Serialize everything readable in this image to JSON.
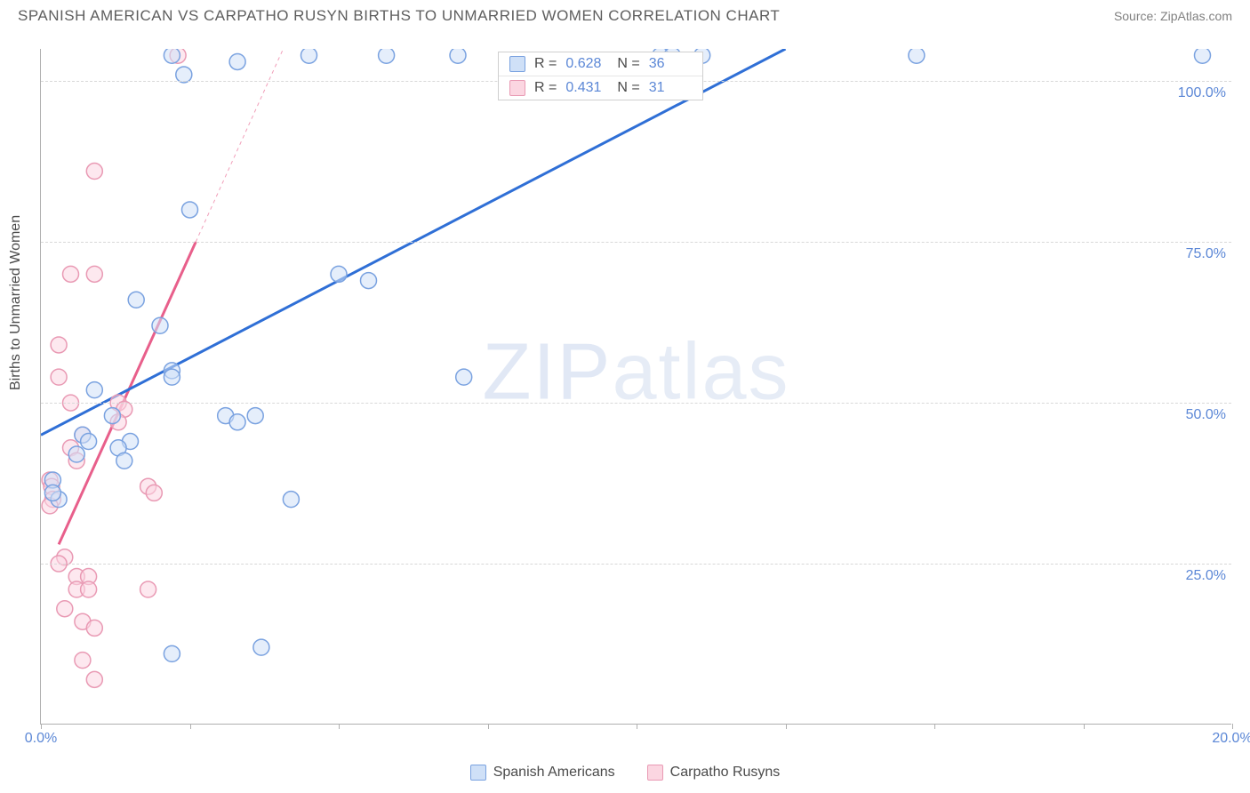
{
  "header": {
    "title": "SPANISH AMERICAN VS CARPATHO RUSYN BIRTHS TO UNMARRIED WOMEN CORRELATION CHART",
    "source": "Source: ZipAtlas.com"
  },
  "ylabel": "Births to Unmarried Women",
  "watermark": {
    "bold": "ZIP",
    "thin": "atlas"
  },
  "axes": {
    "xlim": [
      0,
      20
    ],
    "ylim": [
      0,
      105
    ],
    "xticks": [
      0,
      2.5,
      5,
      7.5,
      10,
      12.5,
      15,
      17.5,
      20
    ],
    "xtick_labels": {
      "0": "0.0%",
      "8": "20.0%"
    },
    "yticks": [
      25,
      50,
      75,
      100
    ],
    "ytick_labels": [
      "25.0%",
      "50.0%",
      "75.0%",
      "100.0%"
    ],
    "grid_color": "#d8d8d8",
    "axis_color": "#b0b0b0",
    "tick_label_color": "#5b87d6",
    "tick_label_fontsize": 16,
    "background_color": "#ffffff"
  },
  "series": {
    "spanish": {
      "label": "Spanish Americans",
      "fill": "#cfe0f7",
      "stroke": "#7aa2e0",
      "line_color": "#2f6fd6",
      "line_width": 3,
      "marker_radius": 9,
      "fill_opacity": 0.55,
      "R": "0.628",
      "N": "36",
      "trend": {
        "x1": 0,
        "y1": 45,
        "x2": 12.5,
        "y2": 105,
        "extend_style": "solid"
      },
      "points": [
        [
          2.2,
          104
        ],
        [
          3.3,
          103
        ],
        [
          4.5,
          104
        ],
        [
          5.8,
          104
        ],
        [
          7.0,
          104
        ],
        [
          10.4,
          104
        ],
        [
          10.6,
          104
        ],
        [
          11.1,
          104
        ],
        [
          14.7,
          104
        ],
        [
          19.5,
          104
        ],
        [
          2.4,
          101
        ],
        [
          2.5,
          80
        ],
        [
          5.0,
          70
        ],
        [
          5.5,
          69
        ],
        [
          1.6,
          66
        ],
        [
          2.0,
          62
        ],
        [
          2.2,
          55
        ],
        [
          2.2,
          54
        ],
        [
          3.1,
          48
        ],
        [
          3.3,
          47
        ],
        [
          3.6,
          48
        ],
        [
          0.6,
          42
        ],
        [
          0.7,
          45
        ],
        [
          0.8,
          44
        ],
        [
          0.2,
          38
        ],
        [
          0.3,
          35
        ],
        [
          0.2,
          36
        ],
        [
          4.2,
          35
        ],
        [
          7.1,
          54
        ],
        [
          1.2,
          48
        ],
        [
          1.5,
          44
        ],
        [
          1.3,
          43
        ],
        [
          1.4,
          41
        ],
        [
          2.2,
          11
        ],
        [
          3.7,
          12
        ],
        [
          0.9,
          52
        ]
      ]
    },
    "rusyn": {
      "label": "Carpatho Rusyns",
      "fill": "#fbd6e1",
      "stroke": "#e99ab4",
      "line_color": "#e85f8b",
      "line_width": 3,
      "marker_radius": 9,
      "fill_opacity": 0.55,
      "R": "0.431",
      "N": "31",
      "trend": {
        "x1": 0.3,
        "y1": 28,
        "x2": 2.6,
        "y2": 75,
        "extend_to_y": 105,
        "extend_style": "dashed"
      },
      "points": [
        [
          2.3,
          104
        ],
        [
          0.9,
          86
        ],
        [
          0.5,
          70
        ],
        [
          0.9,
          70
        ],
        [
          0.3,
          59
        ],
        [
          0.3,
          54
        ],
        [
          0.5,
          50
        ],
        [
          1.3,
          50
        ],
        [
          1.4,
          49
        ],
        [
          1.3,
          47
        ],
        [
          0.7,
          45
        ],
        [
          0.5,
          43
        ],
        [
          0.6,
          41
        ],
        [
          0.15,
          38
        ],
        [
          0.18,
          37
        ],
        [
          0.2,
          35
        ],
        [
          0.15,
          34
        ],
        [
          1.8,
          37
        ],
        [
          1.9,
          36
        ],
        [
          0.4,
          26
        ],
        [
          0.3,
          25
        ],
        [
          0.6,
          23
        ],
        [
          0.8,
          23
        ],
        [
          0.6,
          21
        ],
        [
          0.8,
          21
        ],
        [
          1.8,
          21
        ],
        [
          0.4,
          18
        ],
        [
          0.7,
          16
        ],
        [
          0.9,
          15
        ],
        [
          0.7,
          10
        ],
        [
          0.9,
          7
        ]
      ]
    }
  },
  "corr_legend": {
    "R_label": "R =",
    "N_label": "N ="
  },
  "title_fontsize": 17,
  "title_color": "#5e5e5e"
}
